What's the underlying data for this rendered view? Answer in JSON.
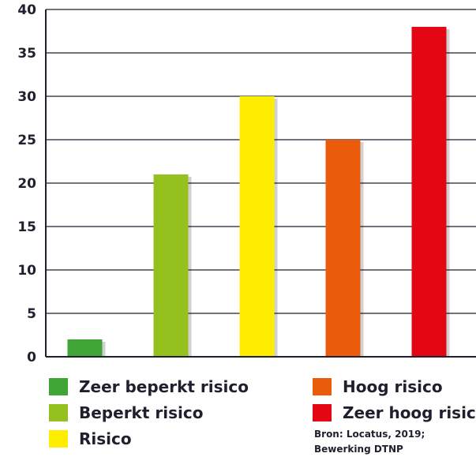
{
  "chart_data": {
    "type": "bar",
    "categories": [
      "Zeer beperkt risico",
      "Beperkt risico",
      "Risico",
      "Hoog risico",
      "Zeer hoog risico"
    ],
    "values": [
      2,
      21,
      30,
      25,
      38
    ],
    "colors": [
      "#3fa535",
      "#95c11f",
      "#ffed00",
      "#ea5b0c",
      "#e30613"
    ],
    "yticks": [
      "0",
      "5",
      "10",
      "15",
      "20",
      "25",
      "30",
      "35",
      "40"
    ],
    "ylim": [
      0,
      40
    ],
    "grid": true,
    "legend_position": "bottom"
  },
  "source": {
    "line1": "Bron: Locatus, 2019;",
    "line2": "Bewerking DTNP"
  }
}
